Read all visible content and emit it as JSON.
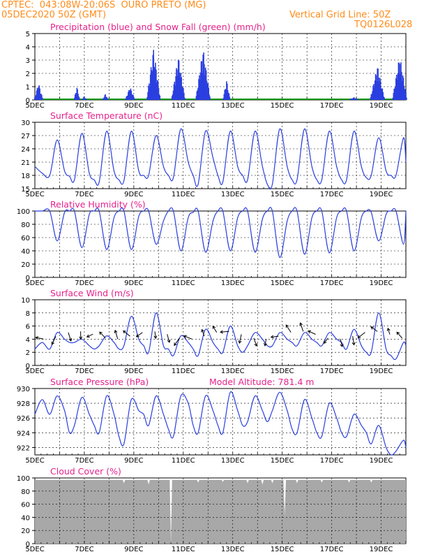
{
  "header": {
    "line1": "CPTEC:  043:08W-20:06S  OURO PRETO (MG)",
    "line2": "05DEC2020 50Z (GMT)",
    "right1": "Vertical Grid Line: 50Z",
    "right2": "TQ0126L028"
  },
  "colors": {
    "series": "#2a3fe0",
    "snow": "#1a9a1a",
    "title": "#e6218c",
    "header": "#ff8c1a",
    "cloud": "#a8a8a8"
  },
  "chart_data": [
    {
      "type": "bar",
      "title": "Precipitation (blue) and Snow Fall (green) (mm/h)",
      "ylim": [
        0,
        5
      ],
      "yticks": [
        0,
        1,
        2,
        3,
        4,
        5
      ],
      "xticks": [
        "5DEC",
        "7DEC",
        "9DEC",
        "11DEC",
        "13DEC",
        "15DEC",
        "17DEC",
        "19DEC"
      ],
      "xlim_days": [
        5,
        20
      ],
      "events": [
        {
          "center": 5.15,
          "peak": 1.3,
          "width": 0.18
        },
        {
          "center": 6.7,
          "peak": 1.0,
          "width": 0.12
        },
        {
          "center": 7.0,
          "peak": 0.3,
          "width": 0.1
        },
        {
          "center": 7.85,
          "peak": 0.45,
          "width": 0.12
        },
        {
          "center": 8.85,
          "peak": 1.0,
          "width": 0.2
        },
        {
          "center": 9.8,
          "peak": 3.9,
          "width": 0.28
        },
        {
          "center": 10.8,
          "peak": 3.3,
          "width": 0.28
        },
        {
          "center": 11.8,
          "peak": 3.9,
          "width": 0.3
        },
        {
          "center": 12.75,
          "peak": 1.5,
          "width": 0.15
        },
        {
          "center": 17.9,
          "peak": 0.2,
          "width": 0.2
        },
        {
          "center": 18.85,
          "peak": 2.6,
          "width": 0.3
        },
        {
          "center": 19.75,
          "peak": 3.4,
          "width": 0.3
        }
      ]
    },
    {
      "type": "line",
      "title": "Surface Temperature (nC)",
      "ylim": [
        15,
        30
      ],
      "yticks": [
        15,
        18,
        21,
        24,
        27,
        30
      ],
      "xticks": [
        "5DEC",
        "7DEC",
        "9DEC",
        "11DEC",
        "13DEC",
        "15DEC",
        "17DEC",
        "19DEC"
      ],
      "x_days": [
        5.0,
        5.3,
        5.6,
        5.9,
        6.2,
        6.4,
        6.6,
        6.9,
        7.2,
        7.4,
        7.6,
        7.9,
        8.2,
        8.4,
        8.6,
        8.9,
        9.2,
        9.4,
        9.6,
        9.9,
        10.2,
        10.4,
        10.6,
        10.9,
        11.2,
        11.4,
        11.6,
        11.9,
        12.2,
        12.4,
        12.6,
        12.9,
        13.2,
        13.4,
        13.6,
        13.9,
        14.2,
        14.4,
        14.6,
        14.9,
        15.2,
        15.4,
        15.6,
        15.9,
        16.2,
        16.4,
        16.6,
        16.9,
        17.2,
        17.4,
        17.6,
        17.9,
        18.2,
        18.4,
        18.6,
        18.9,
        19.2,
        19.4,
        19.6,
        19.9,
        20.0
      ],
      "values": [
        20,
        18.5,
        18,
        26,
        19,
        17.8,
        17,
        27.5,
        18.5,
        17,
        16.5,
        28,
        19,
        17,
        16.8,
        28,
        19,
        18,
        18,
        27,
        20,
        18,
        17.5,
        28.5,
        21,
        18,
        16,
        28,
        22,
        18,
        16.5,
        28,
        20,
        18,
        17,
        28,
        20,
        16,
        16,
        28.5,
        20,
        17,
        17,
        28.5,
        20,
        17,
        17,
        28,
        20,
        17,
        17,
        28,
        20,
        17.5,
        18,
        26.5,
        19,
        18,
        18,
        26.5,
        21
      ]
    },
    {
      "type": "line",
      "title": "Relative Humidity (%)",
      "ylim": [
        0,
        100
      ],
      "yticks": [
        0,
        20,
        40,
        60,
        80,
        100
      ],
      "xticks": [
        "5DEC",
        "7DEC",
        "9DEC",
        "11DEC",
        "13DEC",
        "15DEC",
        "17DEC",
        "19DEC"
      ],
      "x_days": [
        5.0,
        5.3,
        5.6,
        5.9,
        6.2,
        6.4,
        6.6,
        6.9,
        7.2,
        7.4,
        7.6,
        7.9,
        8.2,
        8.4,
        8.6,
        8.9,
        9.2,
        9.4,
        9.6,
        9.9,
        10.2,
        10.4,
        10.6,
        10.9,
        11.2,
        11.4,
        11.6,
        11.9,
        12.2,
        12.4,
        12.6,
        12.9,
        13.2,
        13.4,
        13.6,
        13.9,
        14.2,
        14.4,
        14.6,
        14.9,
        15.2,
        15.4,
        15.6,
        15.9,
        16.2,
        16.4,
        16.6,
        16.9,
        17.2,
        17.4,
        17.6,
        17.9,
        18.2,
        18.4,
        18.6,
        18.9,
        19.2,
        19.4,
        19.6,
        19.9,
        20.0
      ],
      "values": [
        100,
        100,
        100,
        55,
        98,
        100,
        100,
        45,
        95,
        100,
        100,
        42,
        90,
        100,
        100,
        42,
        92,
        100,
        100,
        50,
        85,
        100,
        100,
        40,
        90,
        98,
        100,
        38,
        85,
        100,
        100,
        40,
        90,
        100,
        100,
        38,
        88,
        100,
        100,
        30,
        85,
        100,
        100,
        35,
        90,
        100,
        100,
        37,
        90,
        100,
        100,
        40,
        90,
        100,
        98,
        55,
        95,
        100,
        100,
        50,
        100
      ]
    },
    {
      "type": "line",
      "title": "Surface Wind (m/s)",
      "ylim": [
        0,
        10
      ],
      "yticks": [
        0,
        2,
        4,
        6,
        8,
        10
      ],
      "xticks": [
        "5DEC",
        "7DEC",
        "9DEC",
        "11DEC",
        "13DEC",
        "15DEC",
        "17DEC",
        "19DEC"
      ],
      "x_days": [
        5.0,
        5.3,
        5.6,
        5.9,
        6.2,
        6.4,
        6.6,
        6.9,
        7.2,
        7.4,
        7.6,
        7.9,
        8.2,
        8.4,
        8.6,
        8.9,
        9.2,
        9.4,
        9.6,
        9.9,
        10.2,
        10.4,
        10.6,
        10.9,
        11.2,
        11.4,
        11.6,
        11.9,
        12.2,
        12.4,
        12.6,
        12.9,
        13.2,
        13.4,
        13.6,
        13.9,
        14.2,
        14.4,
        14.6,
        14.9,
        15.2,
        15.4,
        15.6,
        15.9,
        16.2,
        16.4,
        16.6,
        16.9,
        17.2,
        17.4,
        17.6,
        17.9,
        18.2,
        18.4,
        18.6,
        18.9,
        19.2,
        19.4,
        19.6,
        19.9,
        20.0
      ],
      "values": [
        2.5,
        3.5,
        2.5,
        5,
        4,
        3.5,
        3.5,
        4,
        3,
        2.5,
        3,
        4.5,
        3.5,
        2.5,
        3,
        7.5,
        4,
        3,
        2,
        8,
        3,
        2.5,
        1.5,
        4.5,
        3.5,
        2.5,
        1.5,
        5.5,
        3.5,
        2.5,
        2,
        6,
        3,
        2,
        3,
        5,
        4,
        3,
        3,
        5,
        4,
        3.5,
        3,
        5,
        4,
        3.5,
        3,
        5,
        4,
        3.5,
        2.5,
        5.5,
        3,
        2,
        2,
        8,
        2.5,
        1.5,
        1,
        3.5,
        3
      ]
    },
    {
      "type": "line",
      "title": "Surface Pressure (hPa)",
      "annotation": "Model Altitude: 781.4  m",
      "ylim": [
        921,
        930
      ],
      "yticks": [
        922,
        924,
        926,
        928,
        930
      ],
      "xticks": [
        "5DEC",
        "7DEC",
        "9DEC",
        "11DEC",
        "13DEC",
        "15DEC",
        "17DEC",
        "19DEC"
      ],
      "x_days": [
        5.0,
        5.3,
        5.6,
        5.9,
        6.2,
        6.4,
        6.6,
        6.9,
        7.2,
        7.4,
        7.6,
        7.9,
        8.2,
        8.4,
        8.6,
        8.9,
        9.2,
        9.4,
        9.6,
        9.9,
        10.2,
        10.4,
        10.6,
        10.9,
        11.2,
        11.4,
        11.6,
        11.9,
        12.2,
        12.4,
        12.6,
        12.9,
        13.2,
        13.4,
        13.6,
        13.9,
        14.2,
        14.4,
        14.6,
        14.9,
        15.2,
        15.4,
        15.6,
        15.9,
        16.2,
        16.4,
        16.6,
        16.9,
        17.2,
        17.4,
        17.6,
        17.9,
        18.2,
        18.4,
        18.6,
        18.9,
        19.2,
        19.4,
        19.6,
        19.9,
        20.0
      ],
      "values": [
        926.5,
        928.5,
        926.5,
        929,
        927,
        924,
        925,
        928.8,
        926.5,
        925,
        924,
        929,
        926.5,
        923.5,
        922.5,
        928.5,
        927,
        926.5,
        925,
        929,
        926.5,
        924.5,
        923.5,
        929,
        928,
        925,
        924,
        929,
        927,
        925,
        924,
        929.5,
        927,
        925,
        925.5,
        929,
        927,
        925.5,
        927,
        929.5,
        927,
        924.5,
        924,
        928.5,
        926,
        924,
        923.5,
        928,
        926,
        924,
        923.5,
        926.5,
        925,
        924,
        922.5,
        925,
        922,
        921,
        921.5,
        923,
        922
      ]
    },
    {
      "type": "area",
      "title": "Cloud Cover (%)",
      "ylim": [
        0,
        100
      ],
      "yticks": [
        0,
        20,
        40,
        60,
        80,
        100
      ],
      "xticks": [
        "5DEC",
        "7DEC",
        "9DEC",
        "11DEC",
        "13DEC",
        "15DEC",
        "17DEC",
        "19DEC"
      ],
      "base_value": 97,
      "dips": [
        {
          "x_day": 8.6,
          "value": 92
        },
        {
          "x_day": 9.6,
          "value": 90
        },
        {
          "x_day": 10.5,
          "value": 0
        },
        {
          "x_day": 11.6,
          "value": 93
        },
        {
          "x_day": 12.6,
          "value": 94
        },
        {
          "x_day": 13.6,
          "value": 92
        },
        {
          "x_day": 14.2,
          "value": 90
        },
        {
          "x_day": 14.6,
          "value": 92
        },
        {
          "x_day": 15.1,
          "value": 42
        },
        {
          "x_day": 15.6,
          "value": 92
        },
        {
          "x_day": 16.6,
          "value": 93
        },
        {
          "x_day": 17.7,
          "value": 93
        },
        {
          "x_day": 18.6,
          "value": 93
        }
      ]
    }
  ]
}
